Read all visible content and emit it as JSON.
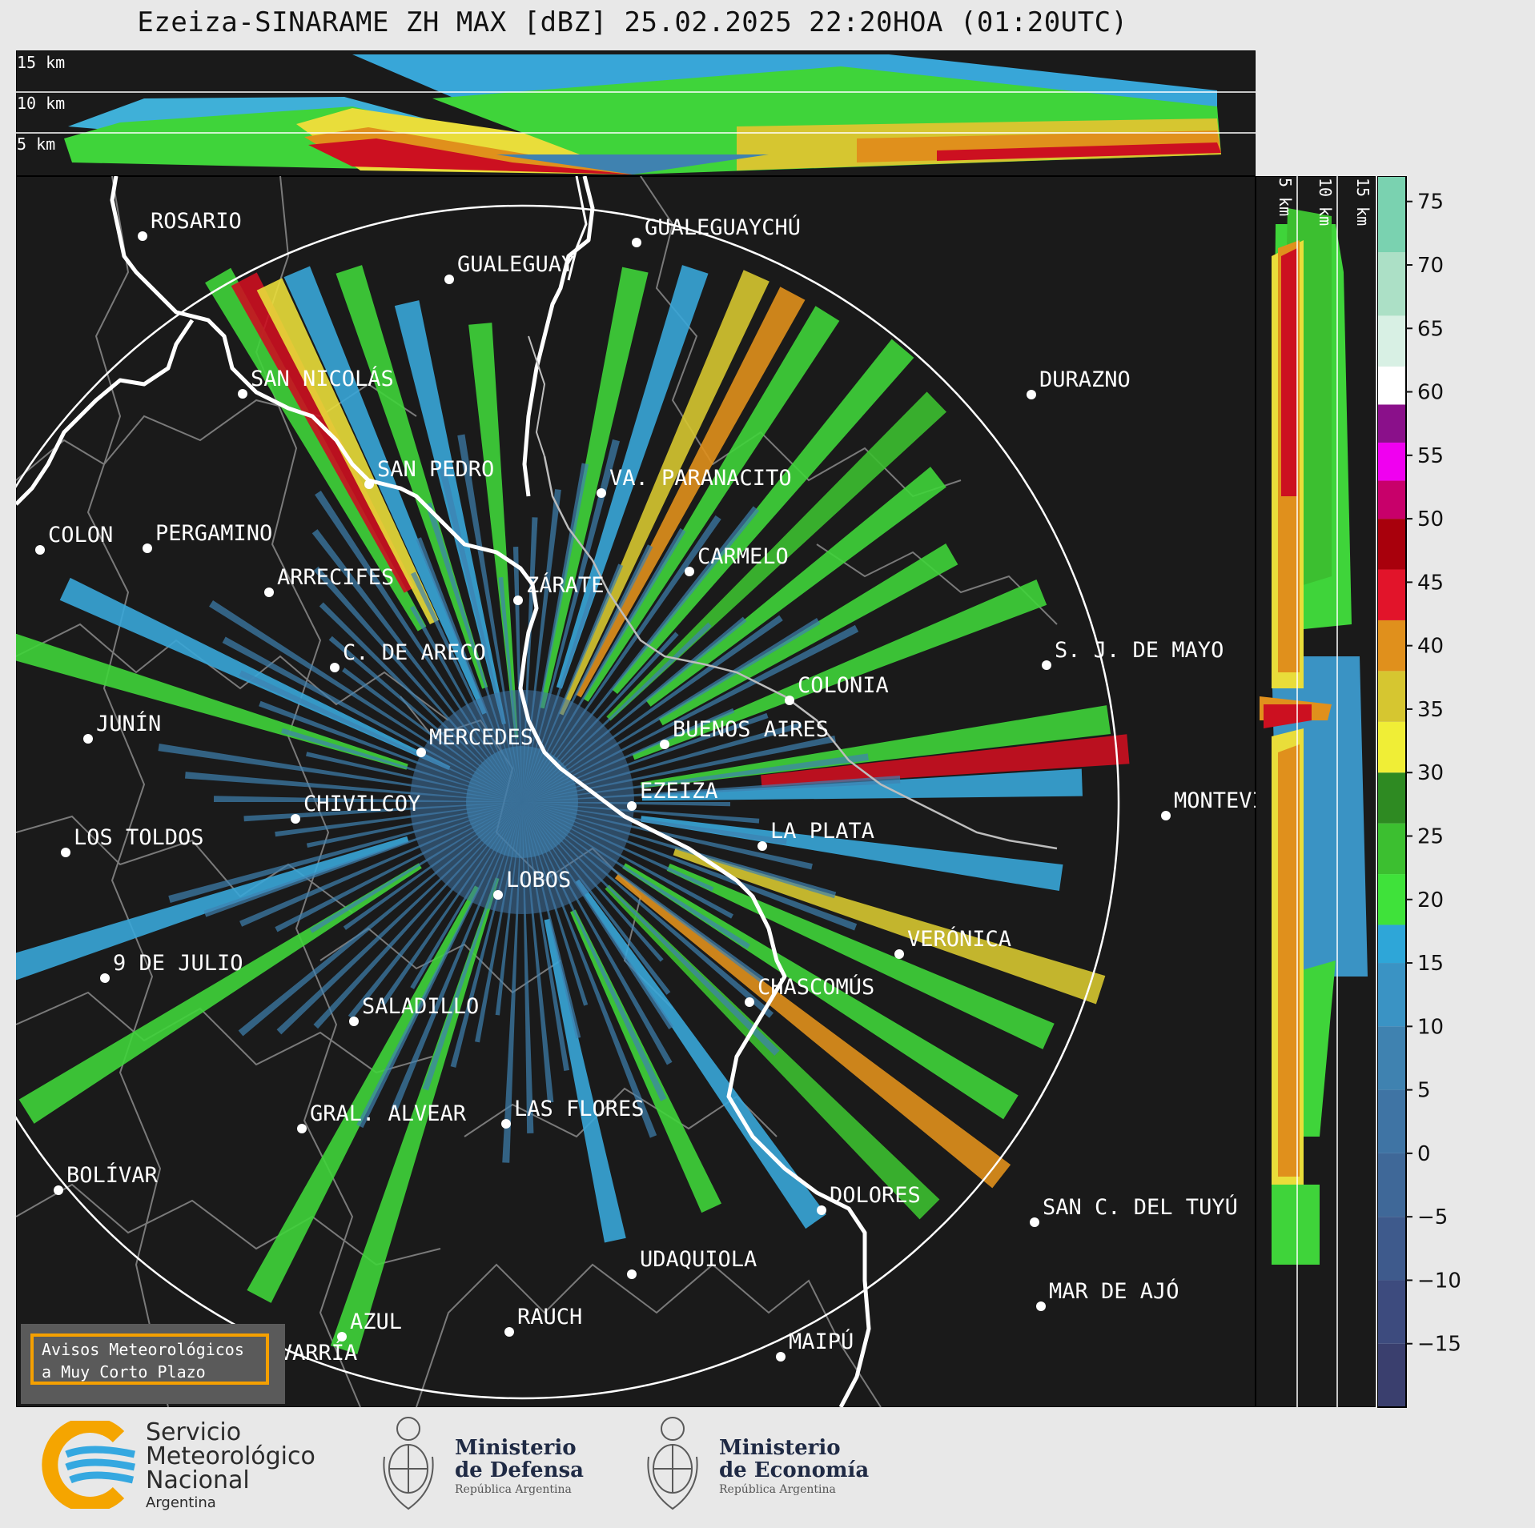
{
  "title": "Ezeiza-SINARAME ZH MAX [dBZ] 25.02.2025 22:20HOA (01:20UTC)",
  "top_section": {
    "altitude_labels": [
      "15 km",
      "10 km",
      "5 km"
    ]
  },
  "right_section": {
    "altitude_labels": [
      "5 km",
      "10 km",
      "15 km"
    ]
  },
  "colorbar": {
    "unit": "dBZ",
    "ticks": [
      75,
      70,
      65,
      60,
      55,
      50,
      45,
      40,
      35,
      30,
      25,
      20,
      15,
      10,
      5,
      0,
      -5,
      -10,
      -15
    ],
    "tick_labels": [
      "75",
      "70",
      "65",
      "60",
      "55",
      "50",
      "45",
      "40",
      "35",
      "30",
      "25",
      "20",
      "15",
      "10",
      "5",
      "0",
      "−5",
      "−10",
      "−15"
    ],
    "range": [
      -20,
      77
    ],
    "colors": [
      {
        "from": -20,
        "to": -15,
        "color": "#3a3f6e"
      },
      {
        "from": -15,
        "to": -10,
        "color": "#3d4b7e"
      },
      {
        "from": -10,
        "to": -5,
        "color": "#3e5a8c"
      },
      {
        "from": -5,
        "to": 0,
        "color": "#3f6898"
      },
      {
        "from": 0,
        "to": 5,
        "color": "#3f74a4"
      },
      {
        "from": 5,
        "to": 10,
        "color": "#3f82b0"
      },
      {
        "from": 10,
        "to": 15,
        "color": "#3a93c4"
      },
      {
        "from": 15,
        "to": 18,
        "color": "#2ea6d8"
      },
      {
        "from": 18,
        "to": 22,
        "color": "#3fe23a"
      },
      {
        "from": 22,
        "to": 26,
        "color": "#3cbf30"
      },
      {
        "from": 26,
        "to": 30,
        "color": "#2e8a22"
      },
      {
        "from": 30,
        "to": 34,
        "color": "#f0ee36"
      },
      {
        "from": 34,
        "to": 38,
        "color": "#d6c630"
      },
      {
        "from": 38,
        "to": 42,
        "color": "#e0901c"
      },
      {
        "from": 42,
        "to": 46,
        "color": "#e2142a"
      },
      {
        "from": 46,
        "to": 50,
        "color": "#a8000c"
      },
      {
        "from": 50,
        "to": 53,
        "color": "#c8006a"
      },
      {
        "from": 53,
        "to": 56,
        "color": "#f000f0"
      },
      {
        "from": 56,
        "to": 59,
        "color": "#8a108a"
      },
      {
        "from": 59,
        "to": 62,
        "color": "#ffffff"
      },
      {
        "from": 62,
        "to": 66,
        "color": "#d8f0e4"
      },
      {
        "from": 66,
        "to": 71,
        "color": "#ace0c6"
      },
      {
        "from": 71,
        "to": 77,
        "color": "#7ad2b0"
      }
    ]
  },
  "map": {
    "radar_site": "EZEIZA",
    "palette": {
      "background": "#1a1a1a",
      "boundaries": "#7a7a7a",
      "rivers": "#ffffff",
      "range_ring": "#ffffff"
    },
    "cities": [
      {
        "name": "ROSARIO"
      },
      {
        "name": "GUALEGUAYCHÚ"
      },
      {
        "name": "GUALEGUAY"
      },
      {
        "name": "SAN NICOLÁS"
      },
      {
        "name": "DURAZNO"
      },
      {
        "name": "SAN PEDRO"
      },
      {
        "name": "VA. PARANACITO"
      },
      {
        "name": "COLON"
      },
      {
        "name": "PERGAMINO"
      },
      {
        "name": "CARMELO"
      },
      {
        "name": "ARRECIFES"
      },
      {
        "name": "ZÁRATE"
      },
      {
        "name": "S. J. DE MAYO"
      },
      {
        "name": "C. DE ARECO"
      },
      {
        "name": "COLONIA"
      },
      {
        "name": "JUNÍN"
      },
      {
        "name": "BUENOS AIRES"
      },
      {
        "name": "MERCEDES"
      },
      {
        "name": "MONTEVIDEO"
      },
      {
        "name": "EZEIZA"
      },
      {
        "name": "CHIVILCOY"
      },
      {
        "name": "LA PLATA"
      },
      {
        "name": "LOS TOLDOS"
      },
      {
        "name": "LOBOS"
      },
      {
        "name": "VERÓNICA"
      },
      {
        "name": "9 DE JULIO"
      },
      {
        "name": "CHASCOMÚS"
      },
      {
        "name": "SALADILLO"
      },
      {
        "name": "GRAL. ALVEAR"
      },
      {
        "name": "LAS FLORES"
      },
      {
        "name": "BOLÍVAR"
      },
      {
        "name": "DOLORES"
      },
      {
        "name": "SAN C. DEL TUYÚ"
      },
      {
        "name": "UDAQUIOLA"
      },
      {
        "name": "MAR DE AJÓ"
      },
      {
        "name": "RAUCH"
      },
      {
        "name": "AZUL"
      },
      {
        "name": "OLAVARRÍA"
      },
      {
        "name": "MAIPÚ"
      }
    ]
  },
  "alert_button": {
    "line1": "Avisos Meteorológicos",
    "line2": "a Muy Corto Plazo"
  },
  "footer": {
    "smn": {
      "line1": "Servicio",
      "line2": "Meteorológico",
      "line3": "Nacional",
      "line4": "Argentina"
    },
    "defensa": {
      "line1": "Ministerio",
      "line2": "de Defensa",
      "line3": "República Argentina"
    },
    "economia": {
      "line1": "Ministerio",
      "line2": "de Economía",
      "line3": "República Argentina"
    }
  }
}
